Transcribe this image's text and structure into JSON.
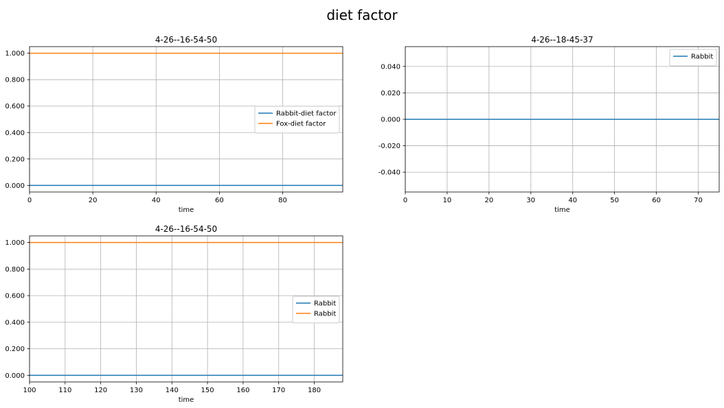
{
  "figure": {
    "title": "diet factor"
  },
  "colors": {
    "blue": "#1f77b4",
    "orange": "#ff7f0e",
    "grid": "#b0b0b0",
    "axis": "#000000",
    "legend_border": "#cccccc"
  },
  "chart_data": [
    {
      "type": "line",
      "title": "4-26--16-54-50",
      "xlabel": "time",
      "ylabel": "",
      "xlim": [
        0,
        99
      ],
      "ylim": [
        -0.05,
        1.05
      ],
      "xticks": [
        0,
        20,
        40,
        60,
        80
      ],
      "xtick_labels": [
        "0",
        "20",
        "40",
        "60",
        "80"
      ],
      "yticks": [
        0,
        0.2,
        0.4,
        0.6,
        0.8,
        1.0
      ],
      "ytick_labels": [
        "0.000",
        "0.200",
        "0.400",
        "0.600",
        "0.800",
        "1.000"
      ],
      "grid": true,
      "legend": "center-right",
      "series": [
        {
          "name": "Rabbit-diet factor",
          "color": "#1f77b4",
          "x": [
            0,
            99
          ],
          "y": [
            0,
            0
          ]
        },
        {
          "name": "Fox-diet factor",
          "color": "#ff7f0e",
          "x": [
            0,
            99
          ],
          "y": [
            1,
            1
          ]
        }
      ]
    },
    {
      "type": "line",
      "title": "4-26--18-45-37",
      "xlabel": "time",
      "ylabel": "",
      "xlim": [
        0,
        75
      ],
      "ylim": [
        -0.055,
        0.055
      ],
      "xticks": [
        0,
        10,
        20,
        30,
        40,
        50,
        60,
        70
      ],
      "xtick_labels": [
        "0",
        "10",
        "20",
        "30",
        "40",
        "50",
        "60",
        "70"
      ],
      "yticks": [
        -0.04,
        -0.02,
        0,
        0.02,
        0.04
      ],
      "ytick_labels": [
        "-0.040",
        "-0.020",
        "0.000",
        "0.020",
        "0.040"
      ],
      "grid": true,
      "legend": "top-right",
      "series": [
        {
          "name": "Rabbit",
          "color": "#1f77b4",
          "x": [
            0,
            75
          ],
          "y": [
            0,
            0
          ]
        }
      ]
    },
    {
      "type": "line",
      "title": "4-26--16-54-50",
      "xlabel": "time",
      "ylabel": "",
      "xlim": [
        100,
        188
      ],
      "ylim": [
        -0.05,
        1.05
      ],
      "xticks": [
        100,
        110,
        120,
        130,
        140,
        150,
        160,
        170,
        180
      ],
      "xtick_labels": [
        "100",
        "110",
        "120",
        "130",
        "140",
        "150",
        "160",
        "170",
        "180"
      ],
      "yticks": [
        0,
        0.2,
        0.4,
        0.6,
        0.8,
        1.0
      ],
      "ytick_labels": [
        "0.000",
        "0.200",
        "0.400",
        "0.600",
        "0.800",
        "1.000"
      ],
      "grid": true,
      "legend": "center-right",
      "series": [
        {
          "name": "Rabbit",
          "color": "#1f77b4",
          "x": [
            100,
            188
          ],
          "y": [
            0,
            0
          ]
        },
        {
          "name": "Rabbit",
          "color": "#ff7f0e",
          "x": [
            100,
            188
          ],
          "y": [
            1,
            1
          ]
        }
      ]
    }
  ]
}
